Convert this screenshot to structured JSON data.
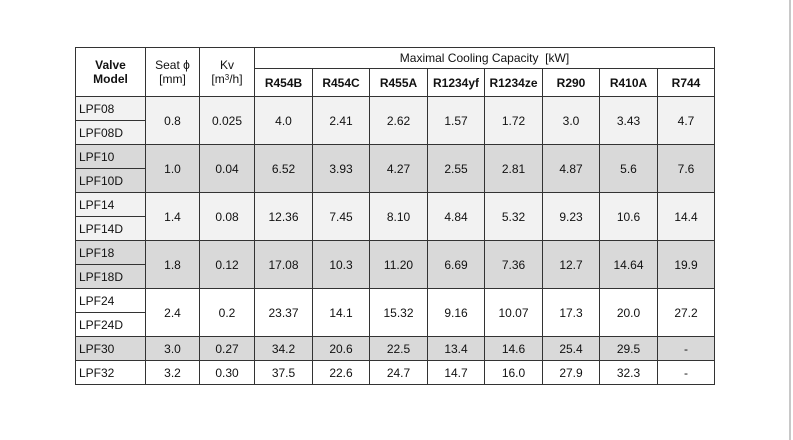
{
  "table": {
    "header": {
      "valve_model_line1": "Valve",
      "valve_model_line2": "Model",
      "seat_line1": "Seat ϕ",
      "seat_line2": "[mm]",
      "kv_line1": "Kv",
      "kv_unit_pre": "[m",
      "kv_unit_sup": "3",
      "kv_unit_post": "/h]",
      "capacity_title": "Maximal Cooling Capacity  [kW]",
      "refrigerants": [
        "R454B",
        "R454C",
        "R455A",
        "R1234yf",
        "R1234ze",
        "R290",
        "R410A",
        "R744"
      ]
    },
    "groups": [
      {
        "models": [
          "LPF08",
          "LPF08D"
        ],
        "seat": "0.8",
        "kv": "0.025",
        "values": [
          "4.0",
          "2.41",
          "2.62",
          "1.57",
          "1.72",
          "3.0",
          "3.43",
          "4.7"
        ]
      },
      {
        "models": [
          "LPF10",
          "LPF10D"
        ],
        "seat": "1.0",
        "kv": "0.04",
        "values": [
          "6.52",
          "3.93",
          "4.27",
          "2.55",
          "2.81",
          "4.87",
          "5.6",
          "7.6"
        ]
      },
      {
        "models": [
          "LPF14",
          "LPF14D"
        ],
        "seat": "1.4",
        "kv": "0.08",
        "values": [
          "12.36",
          "7.45",
          "8.10",
          "4.84",
          "5.32",
          "9.23",
          "10.6",
          "14.4"
        ]
      },
      {
        "models": [
          "LPF18",
          "LPF18D"
        ],
        "seat": "1.8",
        "kv": "0.12",
        "values": [
          "17.08",
          "10.3",
          "11.20",
          "6.69",
          "7.36",
          "12.7",
          "14.64",
          "19.9"
        ]
      },
      {
        "models": [
          "LPF24",
          "LPF24D"
        ],
        "seat": "2.4",
        "kv": "0.2",
        "values": [
          "23.37",
          "14.1",
          "15.32",
          "9.16",
          "10.07",
          "17.3",
          "20.0",
          "27.2"
        ]
      },
      {
        "models": [
          "LPF30"
        ],
        "seat": "3.0",
        "kv": "0.27",
        "values": [
          "34.2",
          "20.6",
          "22.5",
          "13.4",
          "14.6",
          "25.4",
          "29.5",
          "-"
        ]
      },
      {
        "models": [
          "LPF32"
        ],
        "seat": "3.2",
        "kv": "0.30",
        "values": [
          "37.5",
          "22.6",
          "24.7",
          "14.7",
          "16.0",
          "27.9",
          "32.3",
          "-"
        ]
      }
    ]
  }
}
